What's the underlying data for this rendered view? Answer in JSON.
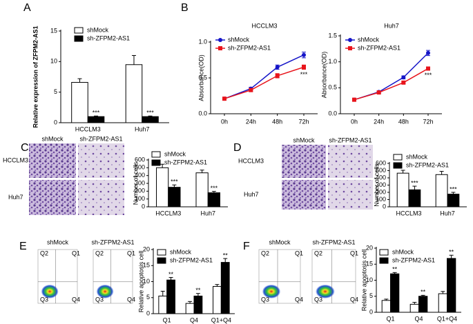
{
  "figure": {
    "letters": [
      "A",
      "B",
      "C",
      "D",
      "E",
      "F"
    ],
    "micrographs": [
      {
        "columns": [
          "shMock",
          "sh-ZFPM2-AS1"
        ],
        "rows": [
          "HCCLM3",
          "Huh7"
        ]
      },
      {
        "columns": [
          "shMock",
          "sh-ZFPM2-AS1"
        ],
        "rows": [
          "HCCLM3",
          "Huh7"
        ]
      }
    ],
    "flow": [
      {
        "columns": [
          "shMock",
          "sh-ZFPM2-AS1"
        ],
        "quadrants": [
          "Q1",
          "Q2",
          "Q3",
          "Q4"
        ]
      },
      {
        "columns": [
          "shMock",
          "sh-ZFPM2-AS1"
        ],
        "quadrants": [
          "Q1",
          "Q2",
          "Q3",
          "Q4"
        ]
      }
    ]
  },
  "chart_data": [
    {
      "type": "bar",
      "y_label": "Relative expression of ZFPM2-AS1",
      "categories": [
        "HCCLM3",
        "Huh7"
      ],
      "series": [
        {
          "name": "shMock",
          "color": "#ffffff",
          "values": [
            6.6,
            9.5
          ],
          "errors": [
            0.6,
            1.5
          ]
        },
        {
          "name": "sh-ZFPM2-AS1",
          "color": "#000000",
          "values": [
            1.0,
            1.0
          ],
          "errors": [
            0.1,
            0.1
          ],
          "significance": [
            "***",
            "***"
          ]
        }
      ],
      "ylim": [
        0,
        15
      ],
      "yticks": [
        0,
        5,
        10,
        15
      ]
    },
    {
      "type": "line",
      "title": "HCCLM3",
      "y_label": "Absorbance(OD)",
      "categories": [
        "0h",
        "24h",
        "48h",
        "72h"
      ],
      "series": [
        {
          "name": "shMock",
          "color": "#1515c8",
          "values": [
            0.21,
            0.35,
            0.65,
            0.82
          ],
          "errors": [
            0.01,
            0.02,
            0.03,
            0.04
          ]
        },
        {
          "name": "sh-ZFPM2-AS1",
          "color": "#e8141b",
          "values": [
            0.21,
            0.33,
            0.53,
            0.65
          ],
          "errors": [
            0.01,
            0.02,
            0.03,
            0.03
          ],
          "significance": [
            null,
            null,
            null,
            "***"
          ]
        }
      ],
      "ylim": [
        0,
        1.0
      ],
      "yticks": [
        {
          "value": 0,
          "label": "0.0"
        },
        {
          "value": 0.5,
          "label": "0.5"
        },
        {
          "value": 1.0,
          "label": "1.0"
        }
      ]
    },
    {
      "type": "line",
      "title": "Huh7",
      "y_label": "Absorbance(OD)",
      "categories": [
        "0h",
        "24h",
        "48h",
        "72h"
      ],
      "series": [
        {
          "name": "shMock",
          "color": "#1515c8",
          "values": [
            0.27,
            0.42,
            0.7,
            1.17
          ],
          "errors": [
            0.01,
            0.02,
            0.03,
            0.05
          ]
        },
        {
          "name": "sh-ZFPM2-AS1",
          "color": "#e8141b",
          "values": [
            0.27,
            0.41,
            0.6,
            0.87
          ],
          "errors": [
            0.01,
            0.02,
            0.02,
            0.03
          ],
          "significance": [
            null,
            null,
            null,
            "***"
          ]
        }
      ],
      "ylim": [
        0,
        1.5
      ],
      "yticks": [
        {
          "value": 0,
          "label": "0.0"
        },
        {
          "value": 0.5,
          "label": "0.5"
        },
        {
          "value": 1.0,
          "label": "1.0"
        },
        {
          "value": 1.5,
          "label": "1.5"
        }
      ]
    },
    {
      "type": "bar",
      "y_label": "Number of cells",
      "categories": [
        "HCCLM3",
        "Huh7"
      ],
      "series": [
        {
          "name": "shMock",
          "color": "#ffffff",
          "values": [
            500,
            435
          ],
          "errors": [
            45,
            35
          ]
        },
        {
          "name": "sh-ZFPM2-AS1",
          "color": "#000000",
          "values": [
            250,
            180
          ],
          "errors": [
            30,
            18
          ],
          "significance": [
            "***",
            "***"
          ]
        }
      ],
      "ylim": [
        0,
        600
      ],
      "yticks": [
        0,
        100,
        200,
        300,
        400,
        500,
        600
      ]
    },
    {
      "type": "bar",
      "y_label": "Number of cells",
      "categories": [
        "HCCLM3",
        "Huh7"
      ],
      "series": [
        {
          "name": "shMock",
          "color": "#ffffff",
          "values": [
            465,
            445
          ],
          "errors": [
            40,
            45
          ]
        },
        {
          "name": "sh-ZFPM2-AS1",
          "color": "#000000",
          "values": [
            235,
            175
          ],
          "errors": [
            50,
            25
          ],
          "significance": [
            "***",
            "***"
          ]
        }
      ],
      "ylim": [
        0,
        600
      ],
      "yticks": [
        0,
        100,
        200,
        300,
        400,
        500,
        600
      ]
    },
    {
      "type": "bar",
      "y_label": "Relative apoptosis cell",
      "categories": [
        "Q1",
        "Q4",
        "Q1+Q4"
      ],
      "series": [
        {
          "name": "shMock",
          "color": "#ffffff",
          "values": [
            5.5,
            3.2,
            8.5
          ],
          "errors": [
            1.5,
            0.6,
            0.6
          ]
        },
        {
          "name": "sh-ZFPM2-AS1",
          "color": "#000000",
          "values": [
            10.5,
            5.5,
            16
          ],
          "errors": [
            0.8,
            0.8,
            1.2
          ],
          "significance": [
            "**",
            "**",
            "**"
          ]
        }
      ],
      "ylim": [
        0,
        20
      ],
      "yticks": [
        0,
        5,
        10,
        15,
        20
      ]
    },
    {
      "type": "bar",
      "y_label": "Relative apoptosis cell",
      "categories": [
        "Q1",
        "Q4",
        "Q1+Q4"
      ],
      "series": [
        {
          "name": "shMock",
          "color": "#ffffff",
          "values": [
            3.7,
            2.5,
            5.8
          ],
          "errors": [
            0.4,
            0.6,
            0.7
          ]
        },
        {
          "name": "sh-ZFPM2-AS1",
          "color": "#000000",
          "values": [
            12,
            5,
            16.8
          ],
          "errors": [
            0.4,
            0.3,
            1.0
          ],
          "significance": [
            "**",
            "**",
            "**"
          ]
        }
      ],
      "ylim": [
        0,
        20
      ],
      "yticks": [
        0,
        5,
        10,
        15,
        20
      ]
    }
  ]
}
